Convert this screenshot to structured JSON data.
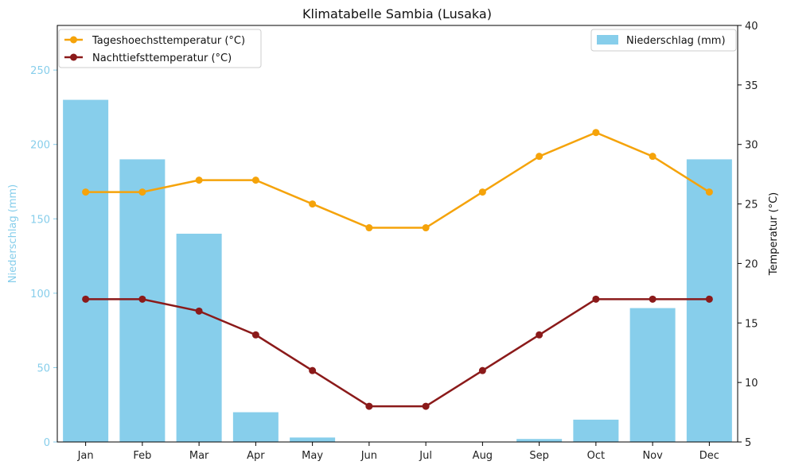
{
  "chart_data": {
    "type": "bar+line",
    "title": "Klimatabelle Sambia (Lusaka)",
    "categories": [
      "Jan",
      "Feb",
      "Mar",
      "Apr",
      "May",
      "Jun",
      "Jul",
      "Aug",
      "Sep",
      "Oct",
      "Nov",
      "Dec"
    ],
    "bar_series": {
      "name": "Niederschlag (mm)",
      "values": [
        230,
        190,
        140,
        20,
        3,
        0,
        0,
        0,
        2,
        15,
        90,
        190
      ],
      "color": "#87ceeb"
    },
    "line_series": [
      {
        "name": "Tageshoechsttemperatur (°C)",
        "values": [
          26,
          26,
          27,
          27,
          25,
          23,
          23,
          26,
          29,
          31,
          29,
          26
        ],
        "color": "#f5a30a"
      },
      {
        "name": "Nachttiefsttemperatur (°C)",
        "values": [
          17,
          17,
          16,
          14,
          11,
          8,
          8,
          11,
          14,
          17,
          17,
          17
        ],
        "color": "#8b1a1a"
      }
    ],
    "y_left": {
      "label": "Niederschlag (mm)",
      "lim": [
        0,
        280
      ],
      "ticks": [
        0,
        50,
        100,
        150,
        200,
        250
      ],
      "color": "#87ceeb"
    },
    "y_right": {
      "label": "Temperatur (°C)",
      "lim": [
        5,
        40
      ],
      "ticks": [
        5,
        10,
        15,
        20,
        25,
        30,
        35,
        40
      ]
    },
    "legend_lines_position": "top-left",
    "legend_bars_position": "top-right",
    "grid": false
  }
}
